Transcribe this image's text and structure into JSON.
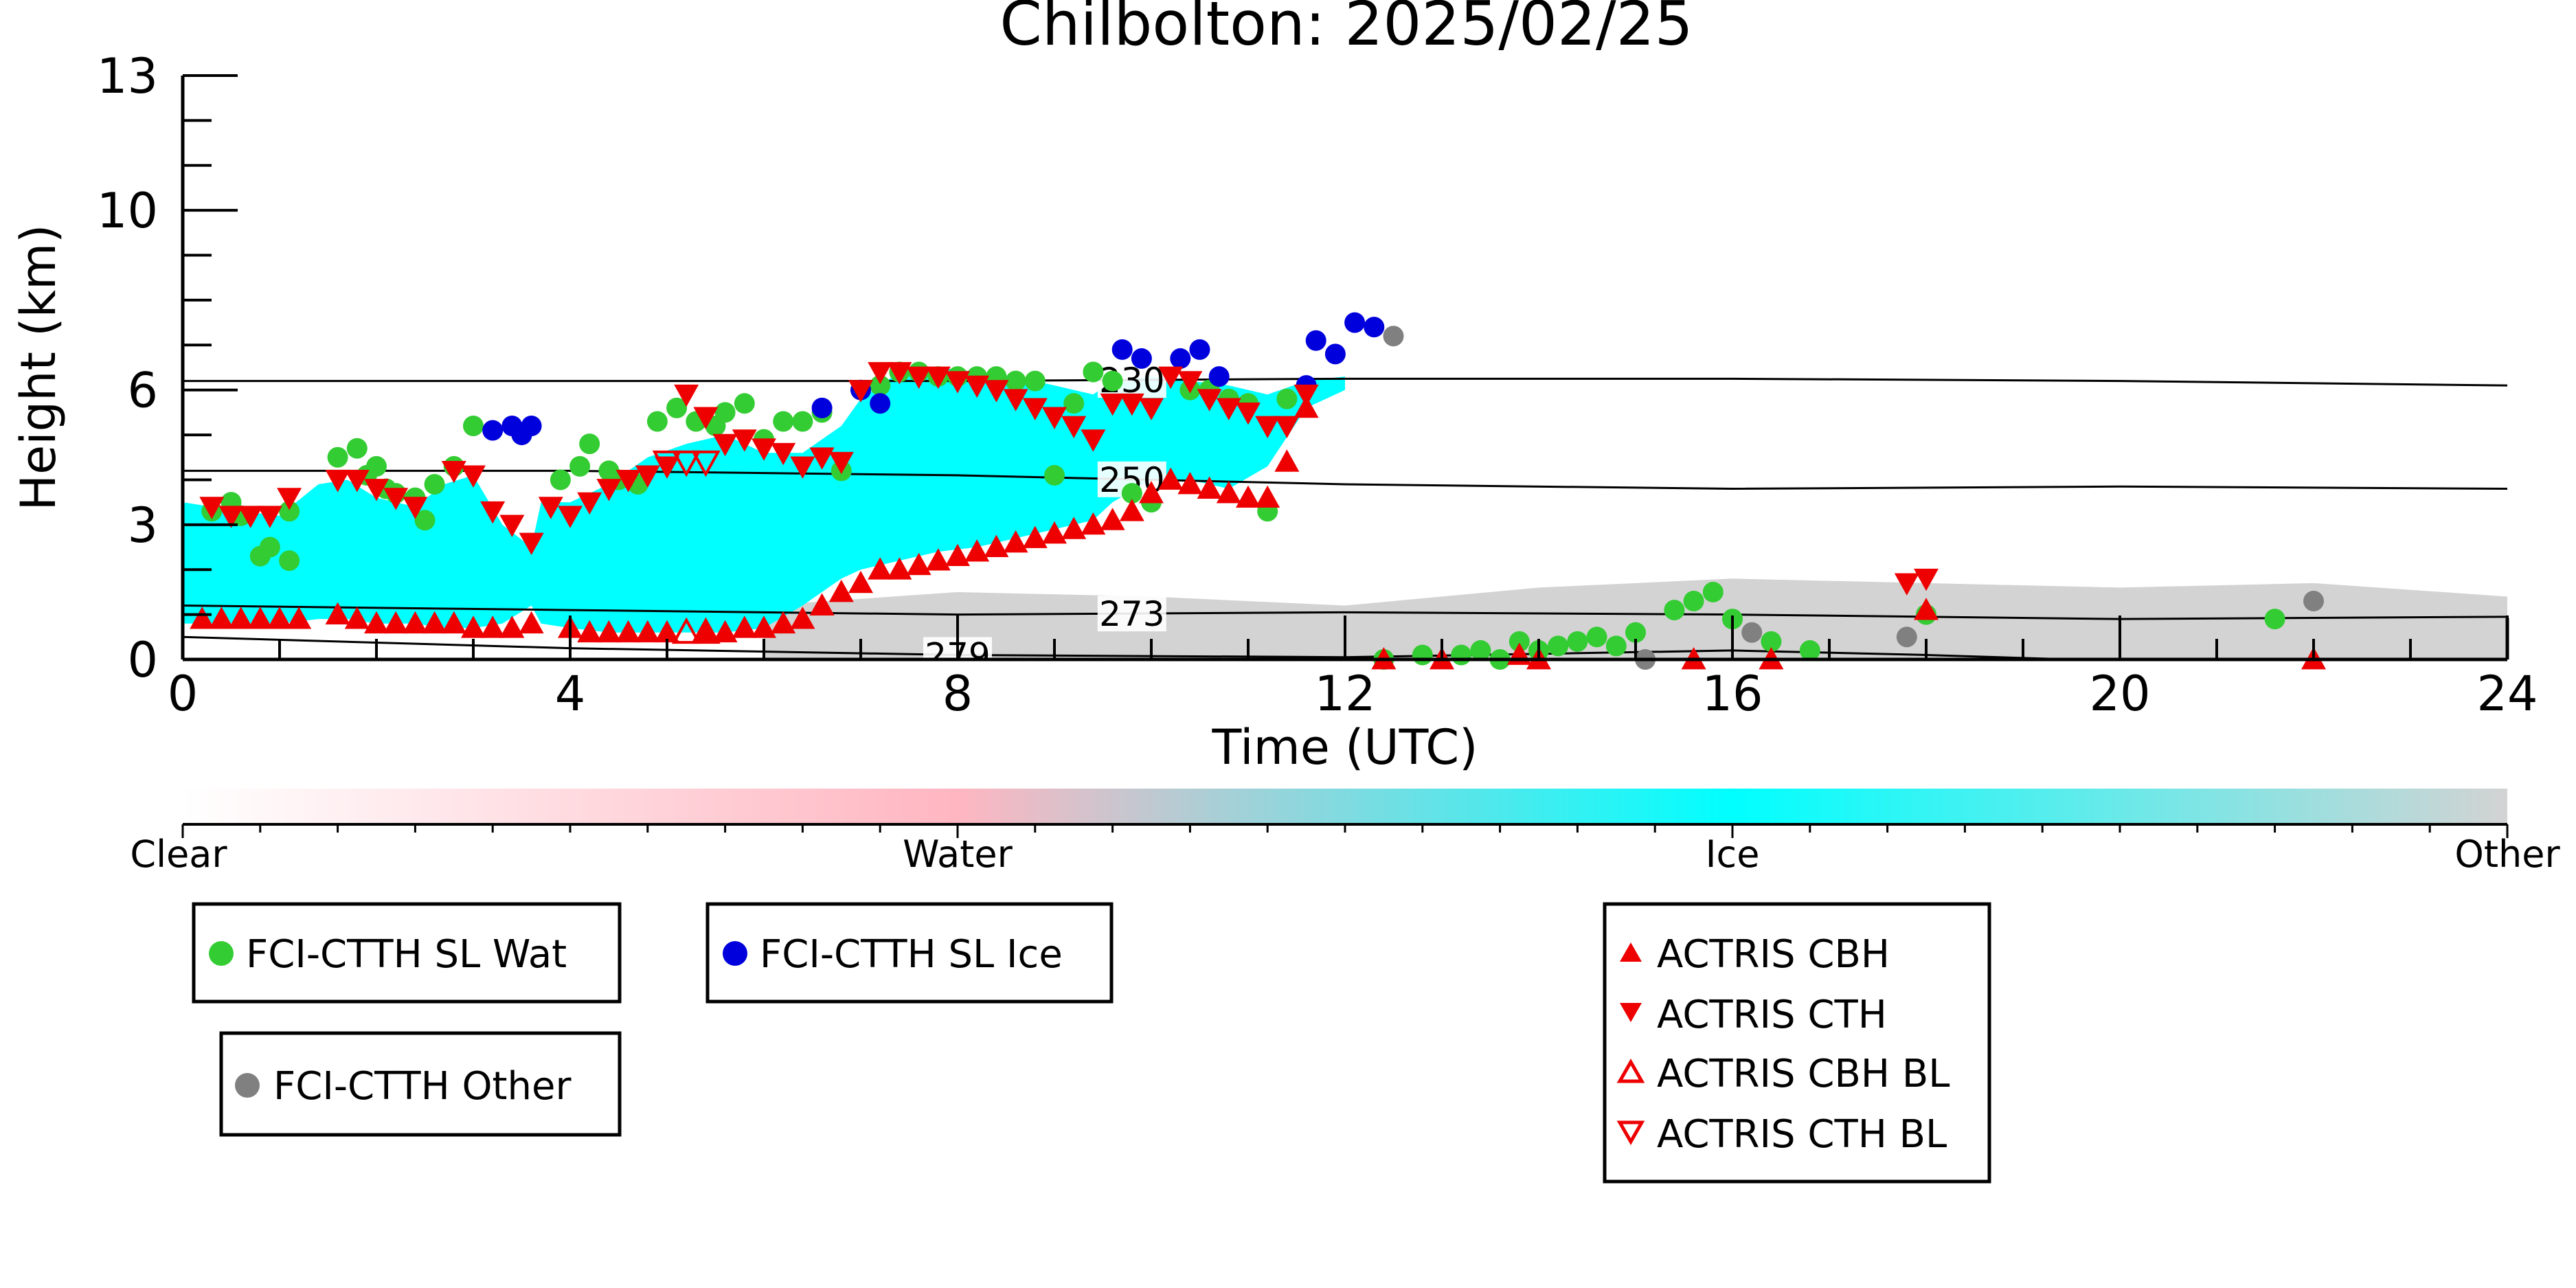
{
  "chart_data": {
    "type": "scatter",
    "title": "Chilbolton: 2025/02/25",
    "xlabel": "Time (UTC)",
    "ylabel": "Height (km)",
    "xlim": [
      0,
      24
    ],
    "ylim": [
      0,
      13
    ],
    "x_ticks": [
      0,
      4,
      8,
      12,
      16,
      20,
      24
    ],
    "y_ticks": [
      0,
      3,
      6,
      10,
      13
    ],
    "grid": false,
    "temperature_contours": [
      {
        "label": "230",
        "label_x": 9.8,
        "points": [
          [
            0,
            6.2
          ],
          [
            4,
            6.2
          ],
          [
            8,
            6.2
          ],
          [
            12,
            6.25
          ],
          [
            16,
            6.25
          ],
          [
            20,
            6.2
          ],
          [
            24,
            6.1
          ]
        ]
      },
      {
        "label": "250",
        "label_x": 9.8,
        "points": [
          [
            0,
            4.2
          ],
          [
            4,
            4.2
          ],
          [
            8,
            4.1
          ],
          [
            12,
            3.9
          ],
          [
            16,
            3.8
          ],
          [
            20,
            3.85
          ],
          [
            24,
            3.8
          ]
        ]
      },
      {
        "label": "273",
        "label_x": 9.8,
        "points": [
          [
            0,
            1.2
          ],
          [
            4,
            1.1
          ],
          [
            8,
            1.0
          ],
          [
            12,
            1.05
          ],
          [
            16,
            1.0
          ],
          [
            20,
            0.9
          ],
          [
            24,
            0.95
          ]
        ]
      },
      {
        "label": "279",
        "label_x": 8.0,
        "points": [
          [
            0,
            0.5
          ],
          [
            4,
            0.25
          ],
          [
            8,
            0.1
          ],
          [
            12,
            0.05
          ],
          [
            16,
            0.2
          ],
          [
            18,
            0.1
          ],
          [
            19.5,
            0.0
          ]
        ]
      }
    ],
    "classification_colorbar": {
      "labels": [
        "Clear",
        "Water",
        "Ice",
        "Other"
      ],
      "colors": [
        "#ffffff",
        "#ffb6c1",
        "#00ffff",
        "#d3d3d3"
      ]
    },
    "classification_regions": [
      {
        "class": "Ice",
        "x": [
          0.0,
          0.3,
          0.6,
          1.0,
          1.4,
          1.7,
          2.0,
          2.4,
          2.7,
          3.0,
          3.3,
          3.6,
          3.7,
          4.0,
          4.4,
          4.8,
          5.2,
          5.6,
          6.0,
          6.4,
          6.8,
          7.0,
          7.4,
          7.8,
          8.2,
          8.6,
          9.0,
          9.4,
          9.6,
          10.0,
          10.4,
          10.8,
          11.2,
          11.6,
          12.0
        ],
        "top": [
          3.5,
          3.4,
          3.3,
          3.2,
          3.9,
          4.0,
          3.6,
          3.4,
          3.9,
          4.1,
          3.0,
          2.5,
          3.5,
          3.5,
          3.9,
          4.5,
          4.8,
          5.0,
          4.6,
          4.6,
          5.2,
          5.8,
          6.4,
          6.5,
          6.4,
          6.3,
          6.1,
          5.9,
          6.2,
          6.3,
          6.2,
          6.1,
          5.9,
          6.2,
          6.3
        ],
        "bottom": [
          0.8,
          0.8,
          0.8,
          0.8,
          0.9,
          0.9,
          0.8,
          0.8,
          0.7,
          0.7,
          0.8,
          1.2,
          0.8,
          0.7,
          0.6,
          0.6,
          0.6,
          0.6,
          0.7,
          1.2,
          1.8,
          2.0,
          2.2,
          2.4,
          2.5,
          2.7,
          2.9,
          3.1,
          3.5,
          4.0,
          4.0,
          3.8,
          4.3,
          5.6,
          6.0
        ]
      },
      {
        "class": "Other",
        "x": [
          6.0,
          8.0,
          10.0,
          12.0,
          14.0,
          16.0,
          18.0,
          20.0,
          22.0,
          24.0
        ],
        "top": [
          1.2,
          1.5,
          1.4,
          1.2,
          1.6,
          1.8,
          1.7,
          1.6,
          1.7,
          1.4
        ],
        "bottom": [
          0.0,
          0.0,
          0.0,
          0.0,
          0.0,
          0.0,
          0.0,
          0.0,
          0.0,
          0.0
        ]
      }
    ],
    "series": [
      {
        "name": "FCI-CTTH SL Wat",
        "color": "#33cc33",
        "marker": "circle",
        "points": [
          [
            0.3,
            3.3
          ],
          [
            0.5,
            3.5
          ],
          [
            0.6,
            3.2
          ],
          [
            0.8,
            2.3
          ],
          [
            0.9,
            2.5
          ],
          [
            1.1,
            2.2
          ],
          [
            1.1,
            3.3
          ],
          [
            1.6,
            4.5
          ],
          [
            1.8,
            4.7
          ],
          [
            1.9,
            4.1
          ],
          [
            2.0,
            4.3
          ],
          [
            2.1,
            3.8
          ],
          [
            2.2,
            3.7
          ],
          [
            2.4,
            3.6
          ],
          [
            2.5,
            3.1
          ],
          [
            2.6,
            3.9
          ],
          [
            2.8,
            4.3
          ],
          [
            3.0,
            5.2
          ],
          [
            3.9,
            4.0
          ],
          [
            4.1,
            4.3
          ],
          [
            4.2,
            4.8
          ],
          [
            4.4,
            4.2
          ],
          [
            4.5,
            4.0
          ],
          [
            4.7,
            3.9
          ],
          [
            4.9,
            5.3
          ],
          [
            5.1,
            5.6
          ],
          [
            5.3,
            5.3
          ],
          [
            5.5,
            5.2
          ],
          [
            5.6,
            5.5
          ],
          [
            5.8,
            5.7
          ],
          [
            6.0,
            4.9
          ],
          [
            6.2,
            5.3
          ],
          [
            6.4,
            5.3
          ],
          [
            6.6,
            5.5
          ],
          [
            6.8,
            4.2
          ],
          [
            7.2,
            6.1
          ],
          [
            7.4,
            6.4
          ],
          [
            7.6,
            6.4
          ],
          [
            7.8,
            6.3
          ],
          [
            8.0,
            6.3
          ],
          [
            8.2,
            6.3
          ],
          [
            8.4,
            6.3
          ],
          [
            8.6,
            6.2
          ],
          [
            8.8,
            6.2
          ],
          [
            9.0,
            4.1
          ],
          [
            9.2,
            5.7
          ],
          [
            9.4,
            6.4
          ],
          [
            9.6,
            6.2
          ],
          [
            9.8,
            3.7
          ],
          [
            10.0,
            3.5
          ],
          [
            10.4,
            6.0
          ],
          [
            10.6,
            6.0
          ],
          [
            10.8,
            5.8
          ],
          [
            11.0,
            5.7
          ],
          [
            11.2,
            3.3
          ],
          [
            11.4,
            5.8
          ],
          [
            12.4,
            0.0
          ],
          [
            12.8,
            0.1
          ],
          [
            13.2,
            0.1
          ],
          [
            13.4,
            0.2
          ],
          [
            13.6,
            0.0
          ],
          [
            13.8,
            0.4
          ],
          [
            14.0,
            0.2
          ],
          [
            14.2,
            0.3
          ],
          [
            14.4,
            0.4
          ],
          [
            14.6,
            0.5
          ],
          [
            14.8,
            0.3
          ],
          [
            15.0,
            0.6
          ],
          [
            15.4,
            1.1
          ],
          [
            15.6,
            1.3
          ],
          [
            15.8,
            1.5
          ],
          [
            16.0,
            0.9
          ],
          [
            16.4,
            0.4
          ],
          [
            16.8,
            0.2
          ],
          [
            18.0,
            1.0
          ],
          [
            21.6,
            0.9
          ]
        ]
      },
      {
        "name": "FCI-CTTH SL Ice",
        "color": "#0000dd",
        "marker": "circle",
        "points": [
          [
            3.2,
            5.1
          ],
          [
            3.4,
            5.2
          ],
          [
            3.5,
            5.0
          ],
          [
            3.6,
            5.2
          ],
          [
            6.6,
            5.6
          ],
          [
            7.0,
            6.0
          ],
          [
            7.2,
            5.7
          ],
          [
            9.7,
            6.9
          ],
          [
            9.9,
            6.7
          ],
          [
            10.3,
            6.7
          ],
          [
            10.5,
            6.9
          ],
          [
            10.7,
            6.3
          ],
          [
            11.6,
            6.1
          ],
          [
            11.7,
            7.1
          ],
          [
            11.9,
            6.8
          ],
          [
            12.1,
            7.5
          ],
          [
            12.3,
            7.4
          ]
        ]
      },
      {
        "name": "FCI-CTTH Other",
        "color": "#808080",
        "marker": "circle",
        "points": [
          [
            12.5,
            7.2
          ],
          [
            15.1,
            0.0
          ],
          [
            16.2,
            0.6
          ],
          [
            17.8,
            0.5
          ],
          [
            22.0,
            1.3
          ]
        ]
      },
      {
        "name": "ACTRIS CBH",
        "color": "#ee0000",
        "marker": "triangle-up",
        "points": [
          [
            0.2,
            0.9
          ],
          [
            0.4,
            0.9
          ],
          [
            0.6,
            0.9
          ],
          [
            0.8,
            0.9
          ],
          [
            1.0,
            0.9
          ],
          [
            1.2,
            0.9
          ],
          [
            1.6,
            1.0
          ],
          [
            1.8,
            0.9
          ],
          [
            2.0,
            0.8
          ],
          [
            2.2,
            0.8
          ],
          [
            2.4,
            0.8
          ],
          [
            2.6,
            0.8
          ],
          [
            2.8,
            0.8
          ],
          [
            3.0,
            0.7
          ],
          [
            3.2,
            0.7
          ],
          [
            3.4,
            0.7
          ],
          [
            3.6,
            0.8
          ],
          [
            4.0,
            0.7
          ],
          [
            4.2,
            0.6
          ],
          [
            4.4,
            0.6
          ],
          [
            4.6,
            0.6
          ],
          [
            4.8,
            0.6
          ],
          [
            5.0,
            0.6
          ],
          [
            5.4,
            0.6
          ],
          [
            5.6,
            0.6
          ],
          [
            5.8,
            0.7
          ],
          [
            6.0,
            0.7
          ],
          [
            6.2,
            0.8
          ],
          [
            6.4,
            0.9
          ],
          [
            6.6,
            1.2
          ],
          [
            6.8,
            1.5
          ],
          [
            7.0,
            1.7
          ],
          [
            7.2,
            2.0
          ],
          [
            7.4,
            2.0
          ],
          [
            7.6,
            2.1
          ],
          [
            7.8,
            2.2
          ],
          [
            8.0,
            2.3
          ],
          [
            8.2,
            2.4
          ],
          [
            8.4,
            2.5
          ],
          [
            8.6,
            2.6
          ],
          [
            8.8,
            2.7
          ],
          [
            9.0,
            2.8
          ],
          [
            9.2,
            2.9
          ],
          [
            9.4,
            3.0
          ],
          [
            9.6,
            3.1
          ],
          [
            9.8,
            3.3
          ],
          [
            10.0,
            3.7
          ],
          [
            10.2,
            4.0
          ],
          [
            10.4,
            3.9
          ],
          [
            10.6,
            3.8
          ],
          [
            10.8,
            3.7
          ],
          [
            11.0,
            3.6
          ],
          [
            11.2,
            3.6
          ],
          [
            11.4,
            4.4
          ],
          [
            11.6,
            5.6
          ],
          [
            12.4,
            0.0
          ],
          [
            13.0,
            0.0
          ],
          [
            13.8,
            0.1
          ],
          [
            14.0,
            0.0
          ],
          [
            15.6,
            0.0
          ],
          [
            16.4,
            0.0
          ],
          [
            18.0,
            1.1
          ],
          [
            22.0,
            0.0
          ]
        ]
      },
      {
        "name": "ACTRIS CTH",
        "color": "#ee0000",
        "marker": "triangle-down",
        "points": [
          [
            0.3,
            3.4
          ],
          [
            0.5,
            3.2
          ],
          [
            0.7,
            3.2
          ],
          [
            0.9,
            3.2
          ],
          [
            1.1,
            3.6
          ],
          [
            1.6,
            4.0
          ],
          [
            1.8,
            4.0
          ],
          [
            2.0,
            3.8
          ],
          [
            2.2,
            3.6
          ],
          [
            2.4,
            3.4
          ],
          [
            2.8,
            4.2
          ],
          [
            3.0,
            4.1
          ],
          [
            3.2,
            3.3
          ],
          [
            3.4,
            3.0
          ],
          [
            3.6,
            2.6
          ],
          [
            3.8,
            3.4
          ],
          [
            4.0,
            3.2
          ],
          [
            4.2,
            3.5
          ],
          [
            4.4,
            3.8
          ],
          [
            4.6,
            4.0
          ],
          [
            4.8,
            4.1
          ],
          [
            5.0,
            4.3
          ],
          [
            5.2,
            5.9
          ],
          [
            5.4,
            5.4
          ],
          [
            5.6,
            4.8
          ],
          [
            5.8,
            4.9
          ],
          [
            6.0,
            4.7
          ],
          [
            6.2,
            4.6
          ],
          [
            6.4,
            4.3
          ],
          [
            6.6,
            4.5
          ],
          [
            6.8,
            4.4
          ],
          [
            7.0,
            6.0
          ],
          [
            7.2,
            6.4
          ],
          [
            7.4,
            6.4
          ],
          [
            7.6,
            6.3
          ],
          [
            7.8,
            6.3
          ],
          [
            8.0,
            6.2
          ],
          [
            8.2,
            6.1
          ],
          [
            8.4,
            6.0
          ],
          [
            8.6,
            5.8
          ],
          [
            8.8,
            5.6
          ],
          [
            9.0,
            5.4
          ],
          [
            9.2,
            5.2
          ],
          [
            9.4,
            4.9
          ],
          [
            9.6,
            5.7
          ],
          [
            9.8,
            5.7
          ],
          [
            10.0,
            5.6
          ],
          [
            10.2,
            6.3
          ],
          [
            10.4,
            6.2
          ],
          [
            10.6,
            5.8
          ],
          [
            10.8,
            5.6
          ],
          [
            11.0,
            5.5
          ],
          [
            11.2,
            5.2
          ],
          [
            11.4,
            5.2
          ],
          [
            11.6,
            5.9
          ],
          [
            17.8,
            1.7
          ],
          [
            18.0,
            1.8
          ]
        ]
      },
      {
        "name": "ACTRIS CBH BL",
        "color": "#ee0000",
        "marker": "triangle-up-open",
        "points": [
          [
            5.2,
            0.6
          ],
          [
            5.4,
            0.6
          ]
        ]
      },
      {
        "name": "ACTRIS CTH BL",
        "color": "#ee0000",
        "marker": "triangle-down-open",
        "points": [
          [
            5.0,
            4.4
          ],
          [
            5.2,
            4.4
          ],
          [
            5.4,
            4.4
          ]
        ]
      }
    ],
    "legend_placement": "below plot"
  }
}
